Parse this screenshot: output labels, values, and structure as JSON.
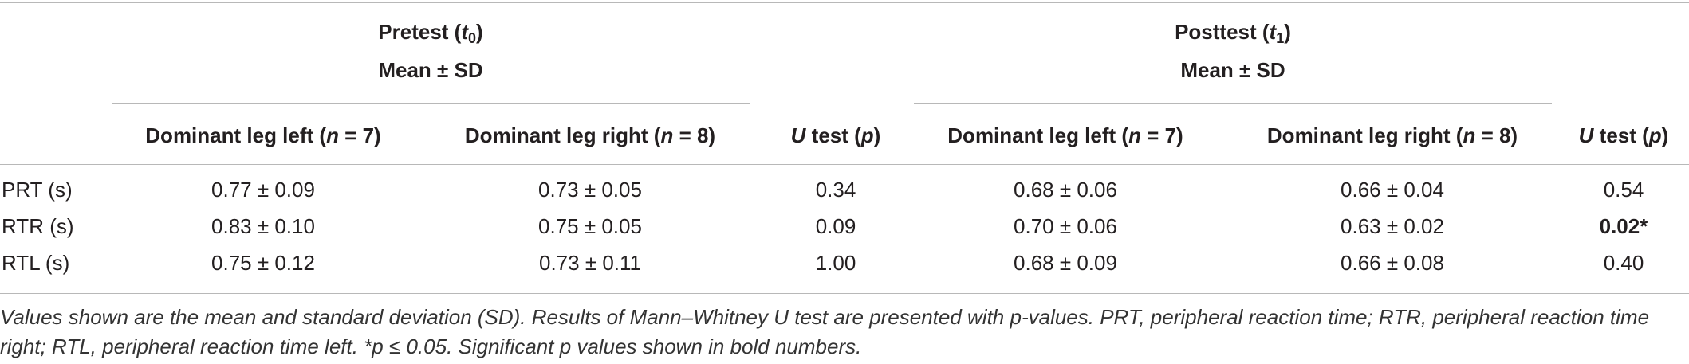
{
  "headers": {
    "pretest": {
      "title": "Pretest (",
      "var": "t",
      "sub": "0",
      "close": ")",
      "stat": "Mean ± SD"
    },
    "posttest": {
      "title": "Posttest (",
      "var": "t",
      "sub": "1",
      "close": ")",
      "stat": "Mean ± SD"
    },
    "columns": [
      {
        "pre": "Dominant leg left (",
        "n": "n",
        "post": " = 7)"
      },
      {
        "pre": "Dominant leg right (",
        "n": "n",
        "post": " = 8)"
      },
      {
        "pre": "",
        "n": "U",
        "post": " test (",
        "p": "p",
        "close": ")"
      },
      {
        "pre": "Dominant leg left (",
        "n": "n",
        "post": " = 7)"
      },
      {
        "pre": "Dominant leg right (",
        "n": "n",
        "post": " = 8)"
      },
      {
        "pre": "",
        "n": "U",
        "post": " test (",
        "p": "p",
        "close": ")"
      }
    ]
  },
  "rows": [
    {
      "label": "PRT (s)",
      "cells": [
        "0.77 ± 0.09",
        "0.73 ± 0.05",
        "0.34",
        "0.68 ± 0.06",
        "0.66 ± 0.04",
        "0.54"
      ]
    },
    {
      "label": "RTR (s)",
      "cells": [
        "0.83 ± 0.10",
        "0.75 ± 0.05",
        "0.09",
        "0.70 ± 0.06",
        "0.63 ± 0.02",
        "0.02*"
      ]
    },
    {
      "label": "RTL (s)",
      "cells": [
        "0.75 ± 0.12",
        "0.73 ± 0.11",
        "1.00",
        "0.68 ± 0.09",
        "0.66 ± 0.08",
        "0.40"
      ]
    }
  ],
  "footnote": "Values shown are the mean and standard deviation (SD). Results of Mann–Whitney U test are presented with p-values. PRT, peripheral reaction time; RTR, peripheral reaction time right; RTL, peripheral reaction time left. *p ≤ 0.05. Significant p values shown in bold numbers."
}
